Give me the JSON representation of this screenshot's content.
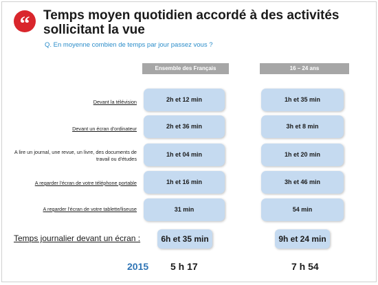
{
  "title": "Temps moyen quotidien accordé à des activités sollicitant la vue",
  "quote_glyph": "“",
  "question": "Q. En moyenne combien de temps par jour passez vous ?",
  "columns": [
    "Ensemble des Français",
    "16 – 24 ans"
  ],
  "rows": [
    {
      "label": "Devant la télévision",
      "values": [
        "2h et 12  min",
        "1h et 35 min"
      ]
    },
    {
      "label": "Devant un écran d'ordinateur",
      "values": [
        "2h et 36 min",
        "3h et 8 min"
      ]
    },
    {
      "label": "A lire un journal, une revue, un livre, des documents de travail ou d'études",
      "values": [
        "1h et 04 min",
        "1h et 20 min"
      ]
    },
    {
      "label": "A regarder l'écran de votre téléphone portable",
      "values": [
        "1h et 16 min",
        "3h et 46 min"
      ]
    },
    {
      "label": "A regarder l'écran de votre tablette/liseuse",
      "values": [
        "31 min",
        "54  min"
      ]
    }
  ],
  "total": {
    "label": "Temps journalier devant un écran :",
    "values": [
      "6h et 35 min",
      "9h et 24 min"
    ]
  },
  "comparison": {
    "year": "2015",
    "values": [
      "5 h 17",
      "7 h 54"
    ]
  }
}
